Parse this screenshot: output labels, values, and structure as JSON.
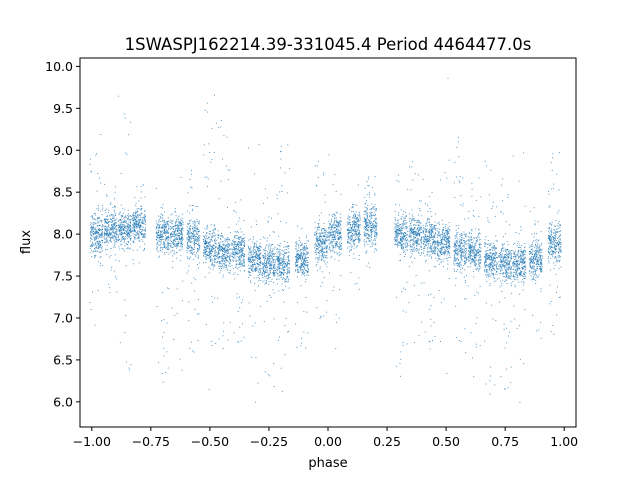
{
  "chart_data": {
    "type": "scatter",
    "title": "1SWASPJ162214.39-331045.4 Period 4464477.0s",
    "xlabel": "phase",
    "ylabel": "flux",
    "xlim": [
      -1.05,
      1.05
    ],
    "ylim": [
      5.7,
      10.1
    ],
    "xticks": [
      -1.0,
      -0.75,
      -0.5,
      -0.25,
      0.0,
      0.25,
      0.5,
      0.75,
      1.0
    ],
    "xtick_labels": [
      "−1.00",
      "−0.75",
      "−0.50",
      "−0.25",
      "0.00",
      "0.25",
      "0.50",
      "0.75",
      "1.00"
    ],
    "yticks": [
      6.0,
      6.5,
      7.0,
      7.5,
      8.0,
      8.5,
      9.0,
      9.5,
      10.0
    ],
    "ytick_labels": [
      "6.0",
      "6.5",
      "7.0",
      "7.5",
      "8.0",
      "8.5",
      "9.0",
      "9.5",
      "10.0"
    ],
    "marker_color": "#1f77b4",
    "grid": false,
    "series": [
      {
        "points_description_note_removed": null,
        "clusters": [
          {
            "x": -0.98,
            "y": 8.0,
            "spread_y": 0.22,
            "low": 6.9,
            "high": 9.2
          },
          {
            "x": -0.92,
            "y": 8.05,
            "spread_y": 0.2,
            "low": 7.3,
            "high": 8.6
          },
          {
            "x": -0.86,
            "y": 8.05,
            "spread_y": 0.18,
            "low": 6.3,
            "high": 9.8
          },
          {
            "x": -0.8,
            "y": 8.1,
            "spread_y": 0.18,
            "low": 7.6,
            "high": 8.6
          },
          {
            "x": -0.7,
            "y": 8.0,
            "spread_y": 0.2,
            "low": 6.2,
            "high": 8.6
          },
          {
            "x": -0.64,
            "y": 8.0,
            "spread_y": 0.2,
            "low": 6.3,
            "high": 8.7
          },
          {
            "x": -0.57,
            "y": 7.95,
            "spread_y": 0.2,
            "low": 6.4,
            "high": 8.8
          },
          {
            "x": -0.5,
            "y": 7.85,
            "spread_y": 0.2,
            "low": 6.0,
            "high": 9.7
          },
          {
            "x": -0.44,
            "y": 7.8,
            "spread_y": 0.2,
            "low": 6.5,
            "high": 9.4
          },
          {
            "x": -0.38,
            "y": 7.8,
            "spread_y": 0.2,
            "low": 6.6,
            "high": 8.6
          },
          {
            "x": -0.31,
            "y": 7.7,
            "spread_y": 0.2,
            "low": 5.95,
            "high": 9.1
          },
          {
            "x": -0.25,
            "y": 7.65,
            "spread_y": 0.2,
            "low": 6.1,
            "high": 8.7
          },
          {
            "x": -0.19,
            "y": 7.65,
            "spread_y": 0.2,
            "low": 6.0,
            "high": 9.1
          },
          {
            "x": -0.11,
            "y": 7.7,
            "spread_y": 0.2,
            "low": 6.5,
            "high": 8.2
          },
          {
            "x": -0.03,
            "y": 7.9,
            "spread_y": 0.2,
            "low": 6.9,
            "high": 8.9
          },
          {
            "x": 0.03,
            "y": 8.0,
            "spread_y": 0.2,
            "low": 6.6,
            "high": 9.0
          },
          {
            "x": 0.11,
            "y": 8.05,
            "spread_y": 0.2,
            "low": 7.3,
            "high": 8.6
          },
          {
            "x": 0.18,
            "y": 8.1,
            "spread_y": 0.2,
            "low": 7.5,
            "high": 8.7
          },
          {
            "x": 0.31,
            "y": 8.0,
            "spread_y": 0.2,
            "low": 6.2,
            "high": 8.8
          },
          {
            "x": 0.37,
            "y": 8.0,
            "spread_y": 0.2,
            "low": 6.6,
            "high": 8.9
          },
          {
            "x": 0.43,
            "y": 7.95,
            "spread_y": 0.2,
            "low": 6.6,
            "high": 8.7
          },
          {
            "x": 0.49,
            "y": 7.9,
            "spread_y": 0.2,
            "low": 6.0,
            "high": 9.9
          },
          {
            "x": 0.56,
            "y": 7.8,
            "spread_y": 0.2,
            "low": 6.5,
            "high": 9.2
          },
          {
            "x": 0.62,
            "y": 7.8,
            "spread_y": 0.2,
            "low": 6.2,
            "high": 8.7
          },
          {
            "x": 0.69,
            "y": 7.7,
            "spread_y": 0.2,
            "low": 5.95,
            "high": 9.0
          },
          {
            "x": 0.75,
            "y": 7.65,
            "spread_y": 0.2,
            "low": 6.0,
            "high": 8.7
          },
          {
            "x": 0.81,
            "y": 7.65,
            "spread_y": 0.2,
            "low": 5.95,
            "high": 9.0
          },
          {
            "x": 0.88,
            "y": 7.7,
            "spread_y": 0.2,
            "low": 6.7,
            "high": 8.5
          },
          {
            "x": 0.96,
            "y": 7.9,
            "spread_y": 0.2,
            "low": 6.6,
            "high": 9.0
          }
        ]
      }
    ]
  }
}
